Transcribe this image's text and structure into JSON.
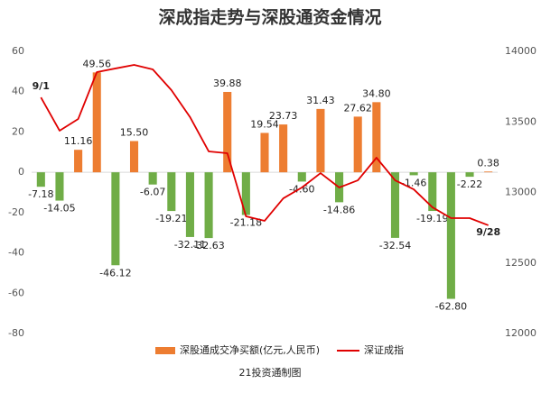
{
  "chart_data": {
    "type": "bar_line",
    "title": "深成指走势与深股通资金情况",
    "footer": "21投资通制图",
    "categories": [
      "9/1",
      null,
      null,
      null,
      null,
      null,
      null,
      null,
      null,
      null,
      null,
      null,
      null,
      null,
      null,
      null,
      null,
      null,
      null,
      null,
      null,
      null,
      null,
      null,
      "9/28"
    ],
    "series": [
      {
        "name": "深股通成交净买额(亿元,人民币)",
        "type": "bar",
        "color": "#ed7d31",
        "negative_color": "#70ad47",
        "values": [
          -7.18,
          -14.05,
          11.16,
          49.56,
          -46.12,
          15.5,
          -6.07,
          -19.21,
          -32.11,
          -32.63,
          39.88,
          -21.18,
          19.54,
          23.73,
          -4.6,
          31.43,
          -14.86,
          27.62,
          34.8,
          -32.54,
          -1.46,
          -19.19,
          -62.8,
          -2.22,
          0.38
        ],
        "value_labels": [
          "-7.18",
          "-14.05",
          "11.16",
          "49.56",
          "-46.12",
          "15.50",
          "-6.07",
          "-19.21",
          "-32.11",
          "-32.63",
          "39.88",
          "-21.18",
          "19.54",
          "23.73",
          "-4.60",
          "31.43",
          "-14.86",
          "27.62",
          "34.80",
          "-32.54",
          "-1.46",
          "-19.19",
          "-62.80",
          "-2.22",
          "0.38"
        ]
      },
      {
        "name": "深证成指",
        "type": "line",
        "axis": "y2",
        "color": "#e00000",
        "values": [
          13674,
          13438,
          13521,
          13853,
          13879,
          13904,
          13872,
          13725,
          13534,
          13291,
          13278,
          12831,
          12799,
          12958,
          13035,
          13137,
          13035,
          13086,
          13246,
          13086,
          13022,
          12895,
          12818,
          12818,
          12767
        ]
      }
    ],
    "ylim": [
      -80,
      60
    ],
    "yticks": [
      -80,
      -60,
      -40,
      -20,
      0,
      20,
      40,
      60
    ],
    "y2lim": [
      12000,
      14000
    ],
    "y2ticks": [
      12000,
      12500,
      13000,
      13500,
      14000
    ],
    "legend": "bottom"
  }
}
